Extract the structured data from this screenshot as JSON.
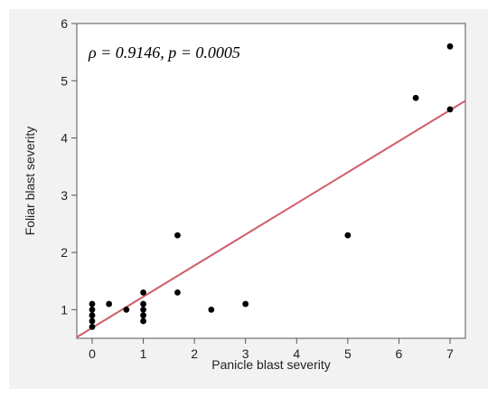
{
  "chart_data": {
    "type": "scatter",
    "title": "",
    "xlabel": "Panicle blast severity",
    "ylabel": "Foliar blast severity",
    "xlim": [
      -0.3,
      7.3
    ],
    "ylim": [
      0.5,
      6
    ],
    "x_ticks": [
      0,
      1,
      2,
      3,
      4,
      5,
      6,
      7
    ],
    "y_ticks": [
      1,
      2,
      3,
      4,
      5,
      6
    ],
    "grid": false,
    "annotation": "ρ = 0.9146, p = 0.0005",
    "point_color": "#000000",
    "fit_line_color": "#d15c6a",
    "points": [
      {
        "x": 0,
        "y": 0.7
      },
      {
        "x": 0,
        "y": 0.8
      },
      {
        "x": 0,
        "y": 0.9
      },
      {
        "x": 0,
        "y": 1.0
      },
      {
        "x": 0,
        "y": 1.1
      },
      {
        "x": 0.33,
        "y": 1.1
      },
      {
        "x": 0.67,
        "y": 1.0
      },
      {
        "x": 1,
        "y": 0.8
      },
      {
        "x": 1,
        "y": 0.9
      },
      {
        "x": 1,
        "y": 1.0
      },
      {
        "x": 1,
        "y": 1.1
      },
      {
        "x": 1,
        "y": 1.3
      },
      {
        "x": 1.67,
        "y": 1.3
      },
      {
        "x": 1.67,
        "y": 2.3
      },
      {
        "x": 2.33,
        "y": 1.0
      },
      {
        "x": 3,
        "y": 1.1
      },
      {
        "x": 5,
        "y": 2.3
      },
      {
        "x": 6.33,
        "y": 4.7
      },
      {
        "x": 7,
        "y": 4.5
      },
      {
        "x": 7,
        "y": 5.6
      }
    ],
    "fit_line": {
      "x": [
        -0.3,
        7.3
      ],
      "y": [
        0.52,
        4.65
      ]
    }
  }
}
